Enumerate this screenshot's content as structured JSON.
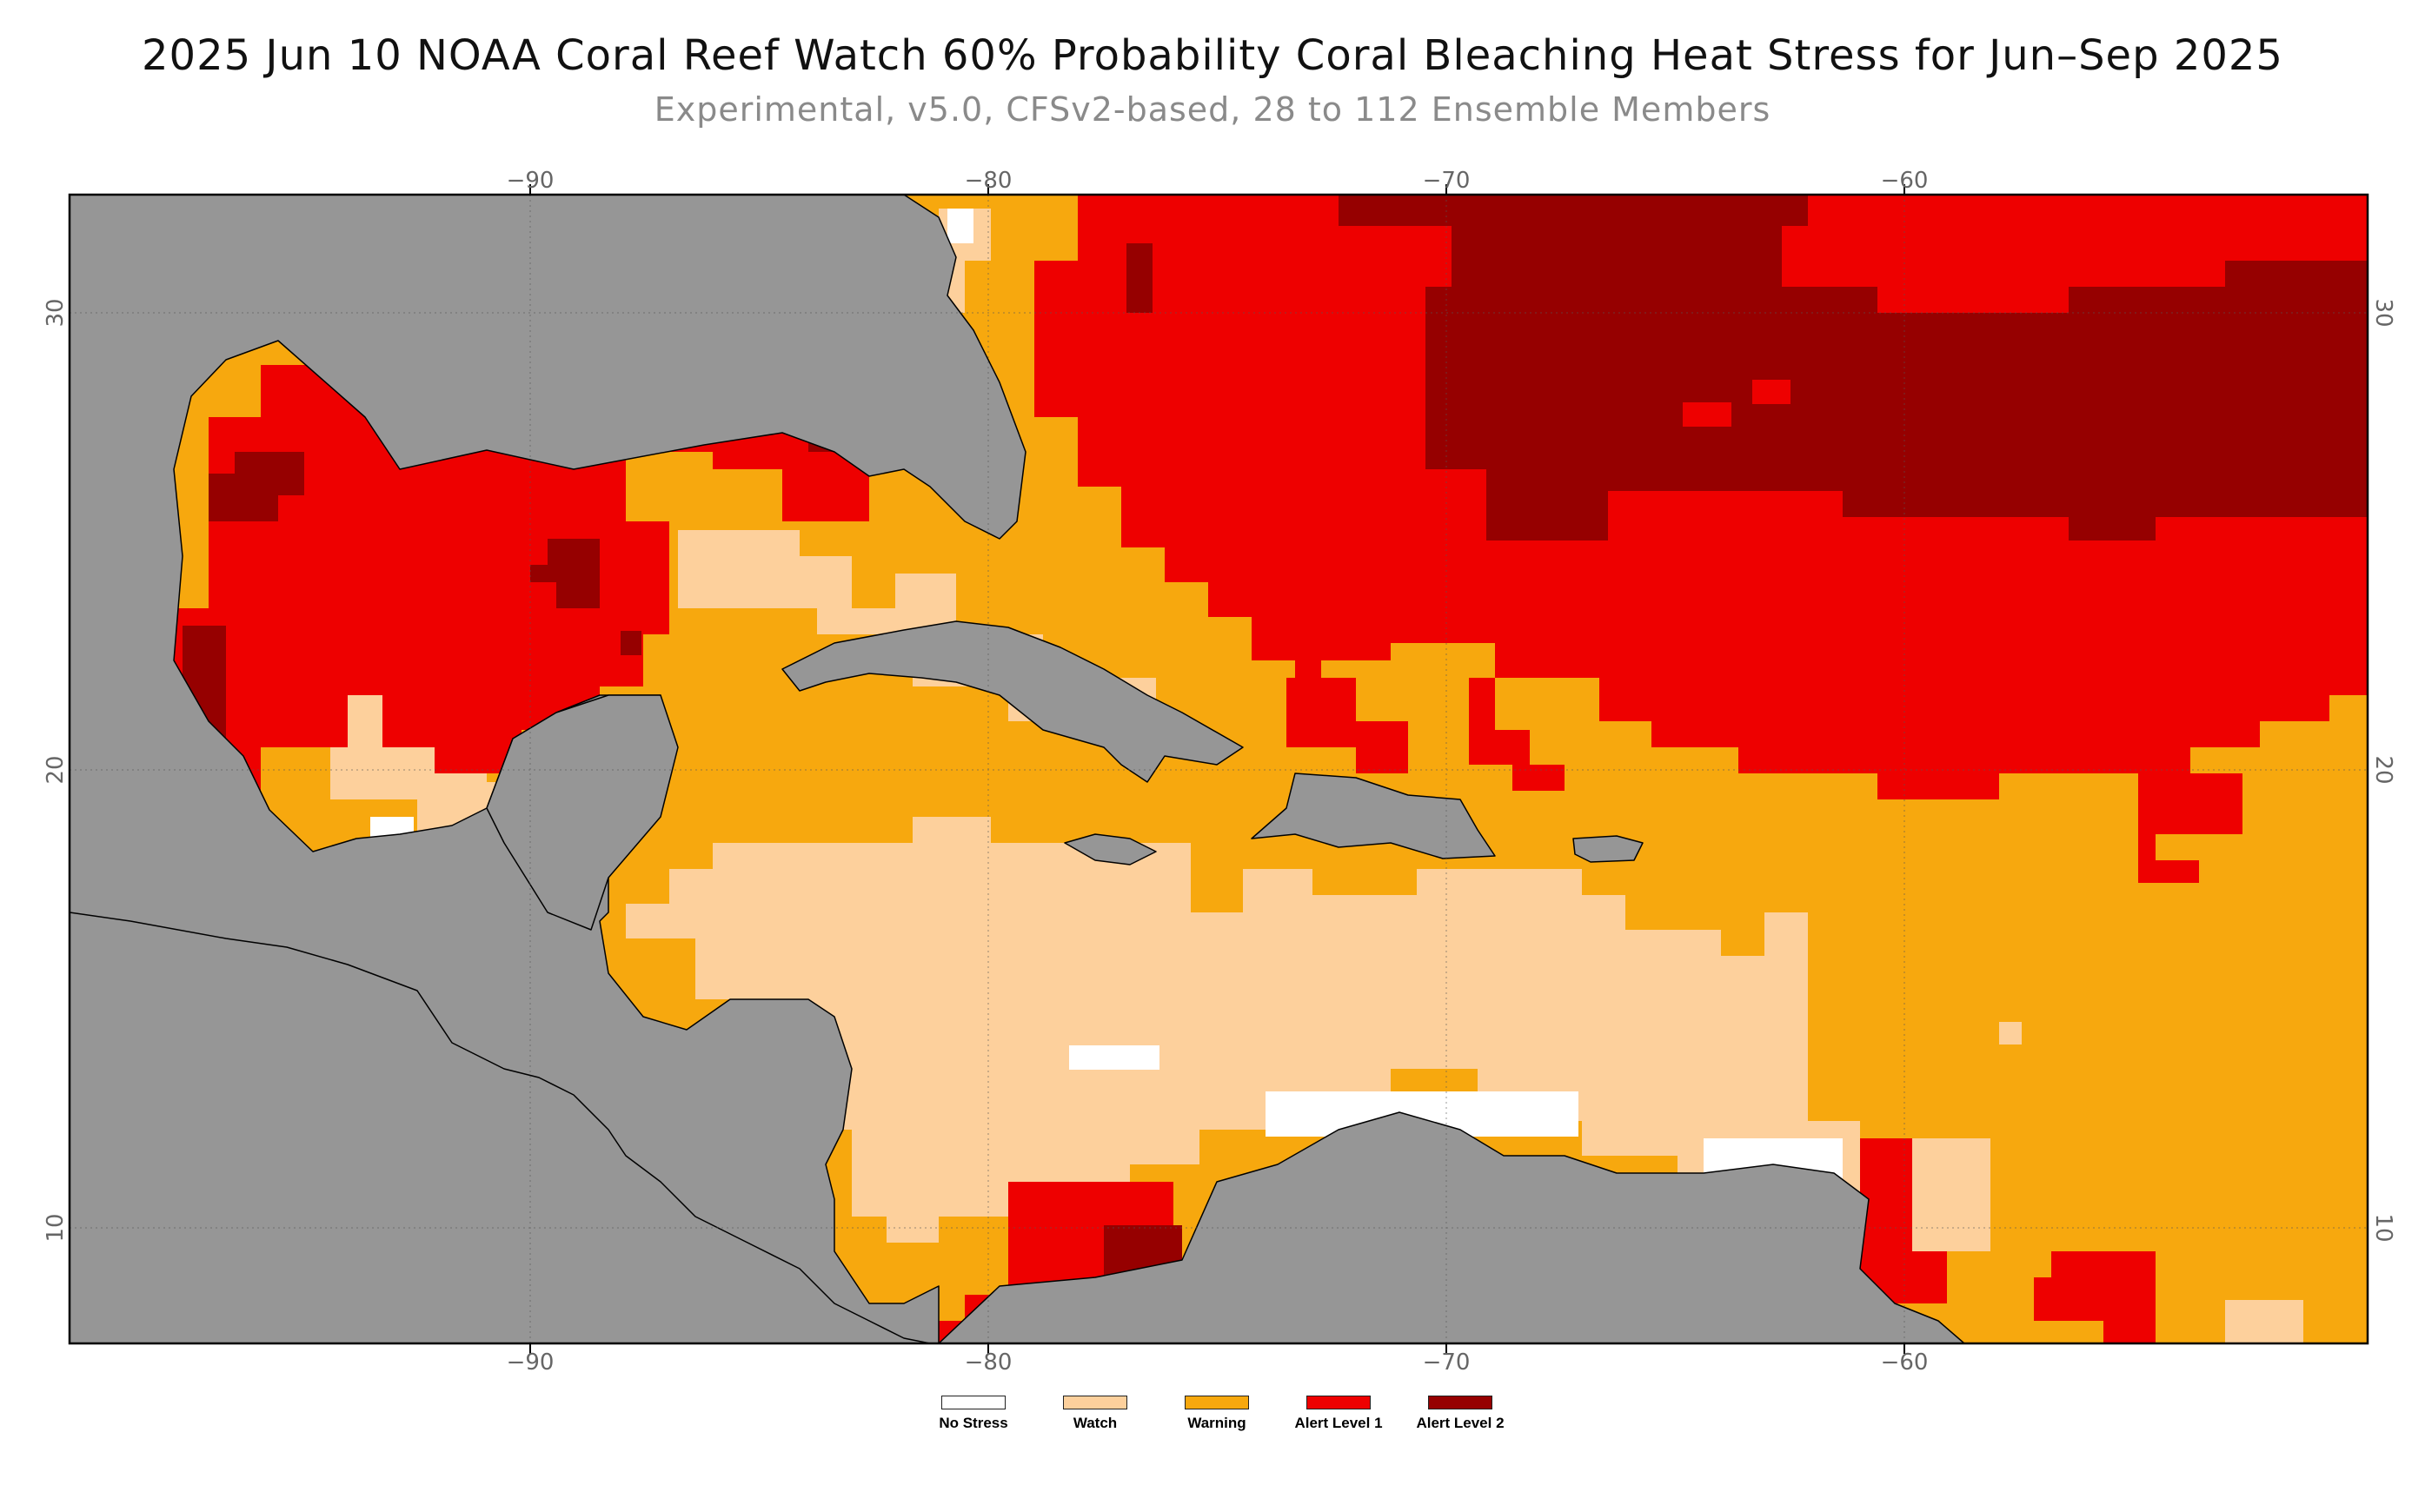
{
  "title": "2025 Jun 10 NOAA Coral Reef Watch 60% Probability Coral Bleaching Heat Stress for Jun–Sep 2025",
  "subtitle": "Experimental, v5.0, CFSv2-based, 28 to 112 Ensemble Members",
  "axes": {
    "lon_ticks": [
      "−90",
      "−80",
      "−70",
      "−60"
    ],
    "lat_ticks": [
      "30",
      "20",
      "10"
    ]
  },
  "colors": {
    "no_stress": "#ffffff",
    "watch": "#fdd09c",
    "warning": "#f7a80e",
    "alert1": "#ee0000",
    "alert2": "#960000",
    "land": "#969696"
  },
  "legend": [
    {
      "label": "No Stress",
      "color": "#ffffff"
    },
    {
      "label": "Watch",
      "color": "#fdd09c"
    },
    {
      "label": "Warning",
      "color": "#f7a80e"
    },
    {
      "label": "Alert Level 1",
      "color": "#ee0000"
    },
    {
      "label": "Alert Level 2",
      "color": "#960000"
    }
  ]
}
